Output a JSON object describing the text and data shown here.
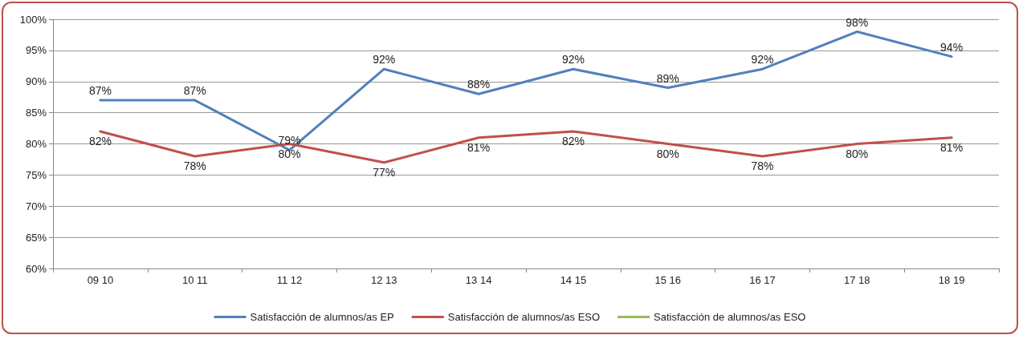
{
  "chart_data": {
    "type": "line",
    "categories": [
      "09 10",
      "10 11",
      "11 12",
      "12 13",
      "13 14",
      "14 15",
      "15 16",
      "16 17",
      "17 18",
      "18 19"
    ],
    "series": [
      {
        "name": "Satisfacción de alumnos/as EP",
        "color": "#4f81bd",
        "values": [
          87,
          87,
          79,
          92,
          88,
          92,
          89,
          92,
          98,
          94
        ],
        "value_labels": [
          "87%",
          "87%",
          "79%",
          "92%",
          "88%",
          "92%",
          "89%",
          "92%",
          "98%",
          "94%"
        ]
      },
      {
        "name": "Satisfacción de alumnos/as ESO",
        "color": "#c0504d",
        "values": [
          82,
          78,
          80,
          77,
          81,
          82,
          80,
          78,
          80,
          81
        ],
        "value_labels": [
          "82%",
          "78%",
          "80%",
          "77%",
          "81%",
          "82%",
          "80%",
          "78%",
          "80%",
          "81%"
        ]
      },
      {
        "name": "Satisfacción de alumnos/as ESO",
        "color": "#9bbb59",
        "values": [
          null,
          null,
          null,
          null,
          null,
          null,
          null,
          null,
          null,
          null
        ]
      }
    ],
    "ylim": [
      60,
      100
    ],
    "yticks": [
      {
        "value": 60,
        "label": "60%"
      },
      {
        "value": 65,
        "label": "65%"
      },
      {
        "value": 70,
        "label": "70%"
      },
      {
        "value": 75,
        "label": "75%"
      },
      {
        "value": 80,
        "label": "80%"
      },
      {
        "value": 85,
        "label": "85%"
      },
      {
        "value": 90,
        "label": "90%"
      },
      {
        "value": 95,
        "label": "95%"
      },
      {
        "value": 100,
        "label": "100%"
      }
    ],
    "grid": "y",
    "legend": "bottom",
    "marker": "none",
    "line_style": "solid"
  }
}
